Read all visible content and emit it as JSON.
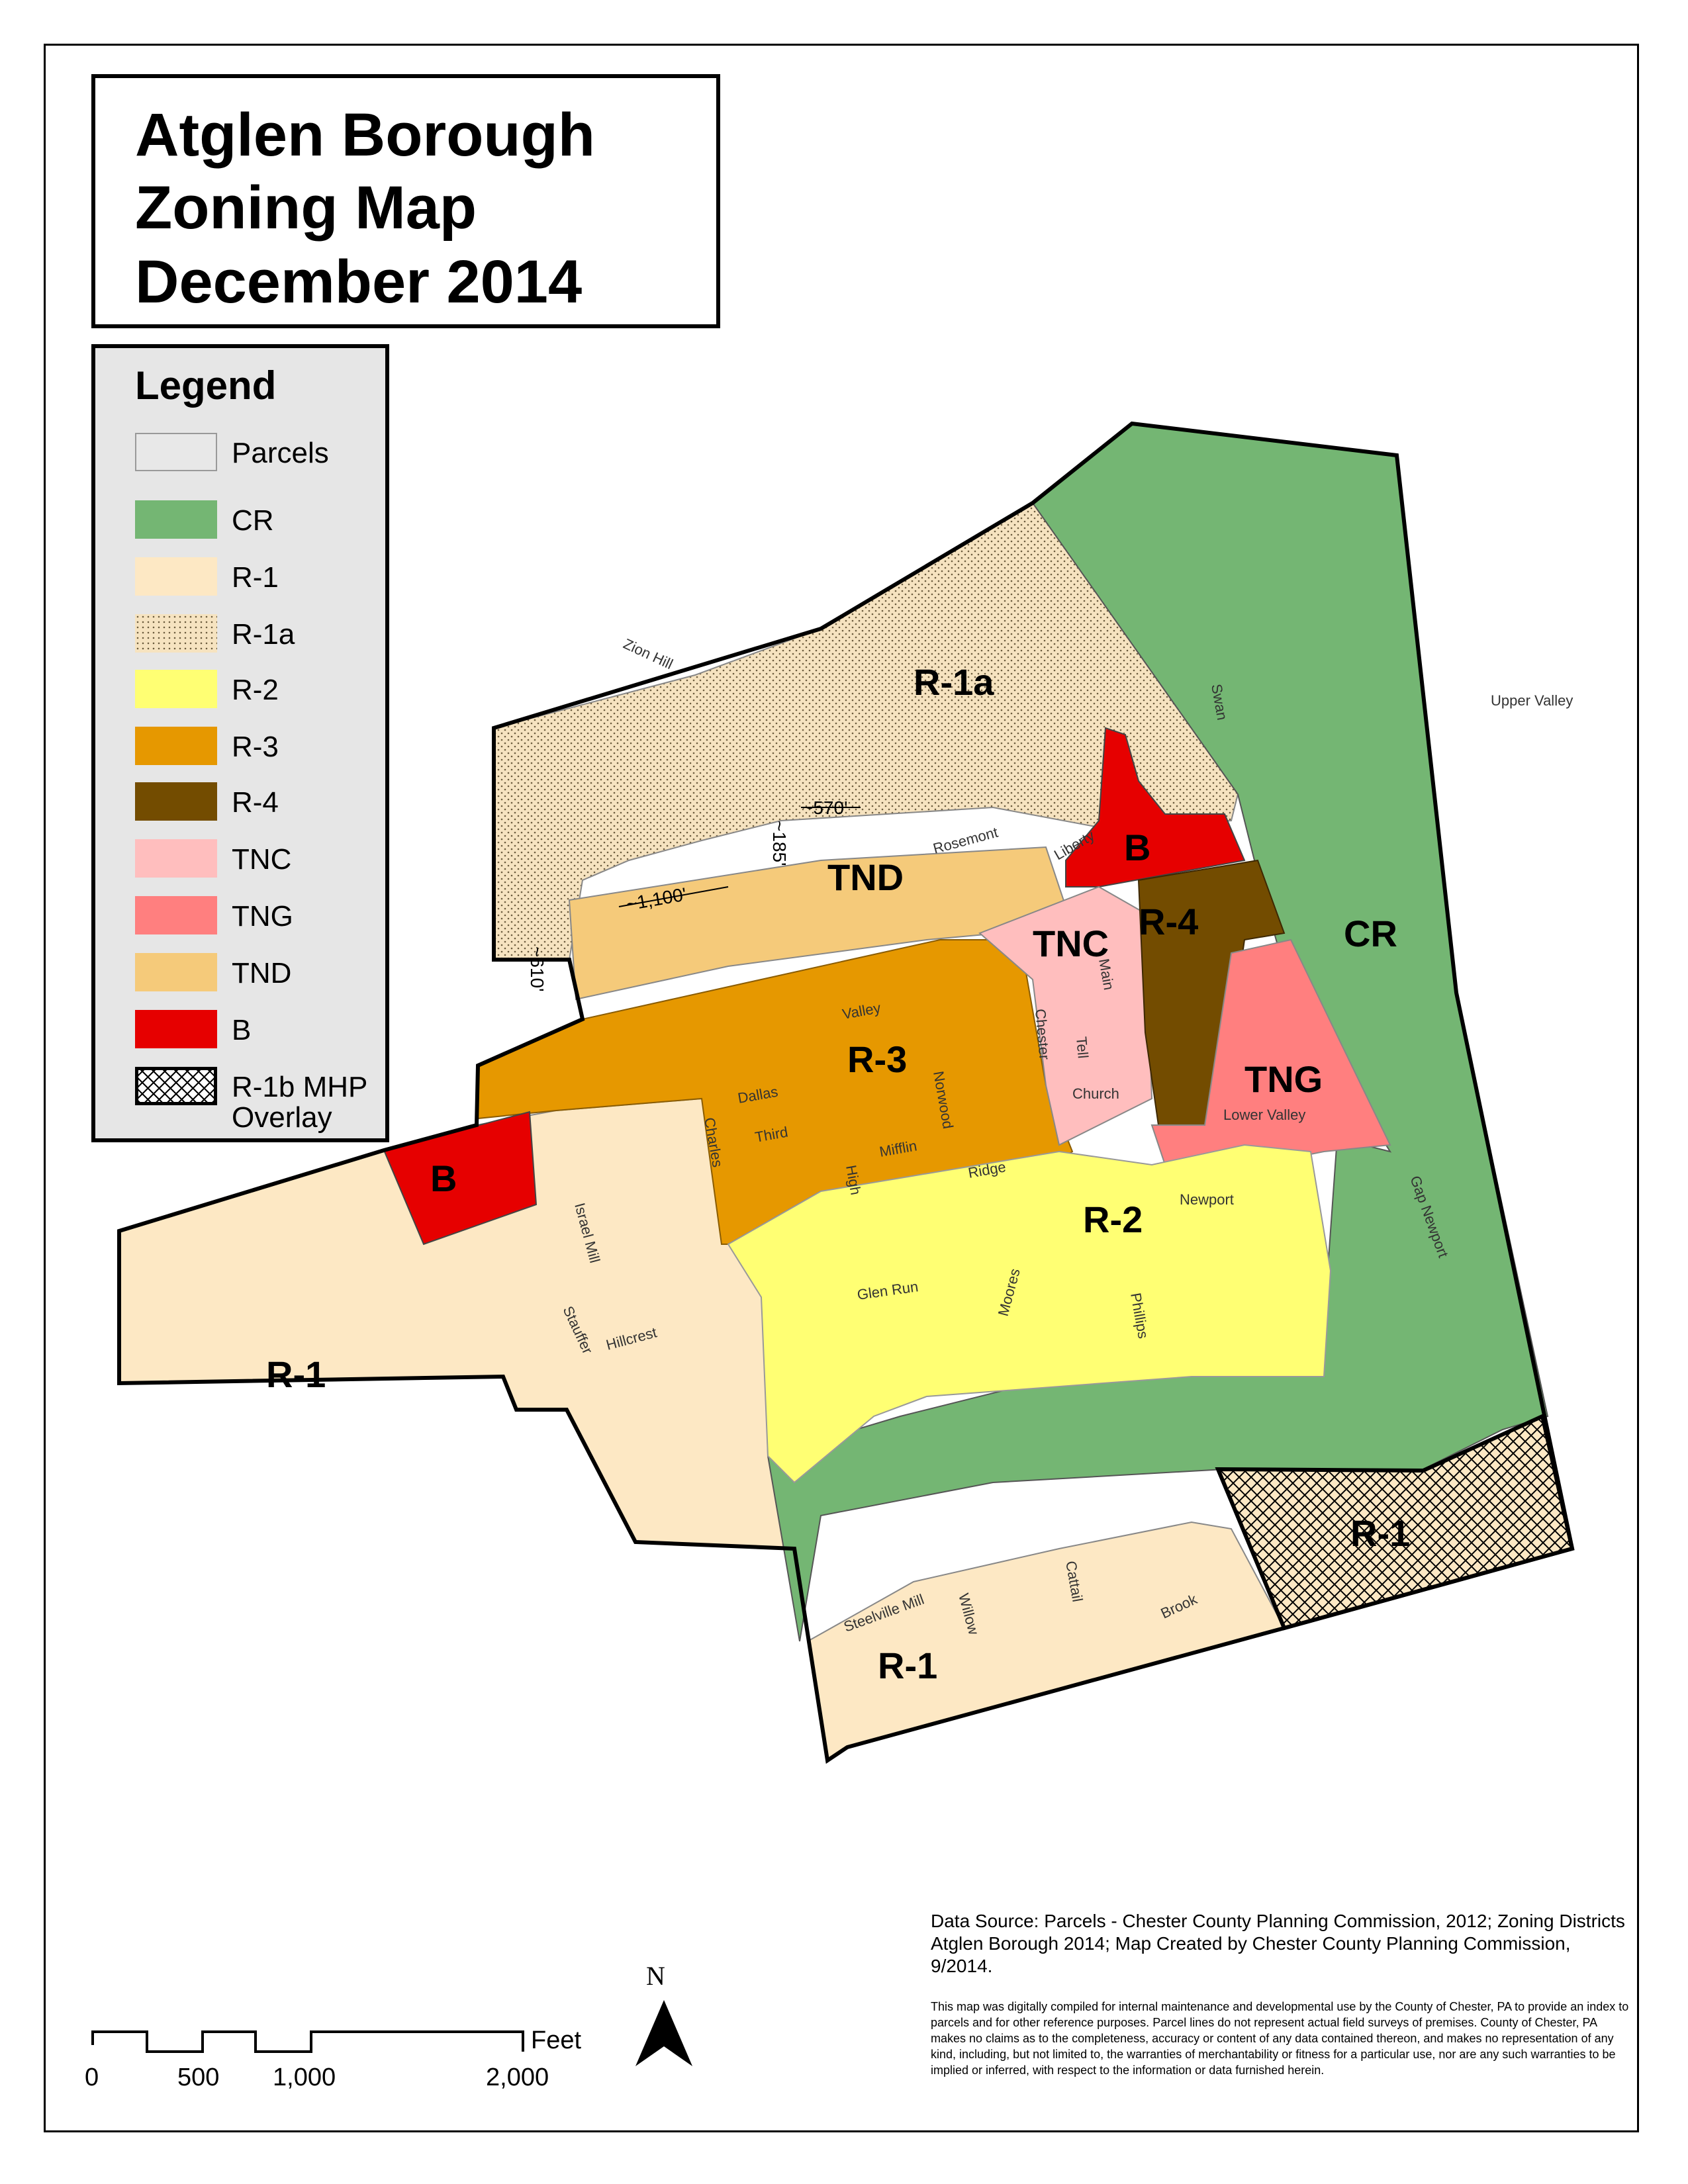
{
  "title": {
    "line1": "Atglen Borough",
    "line2": "Zoning Map",
    "line3": "December 2014"
  },
  "legend": {
    "title": "Legend",
    "items": [
      {
        "label": "Parcels",
        "color": "#e8e8e8",
        "style": "outline"
      },
      {
        "label": "CR",
        "color": "#74b673",
        "style": "fill"
      },
      {
        "label": "R-1",
        "color": "#fde8c4",
        "style": "fill"
      },
      {
        "label": "R-1a",
        "color": "#f6e3c0",
        "style": "dots"
      },
      {
        "label": "R-2",
        "color": "#ffff73",
        "style": "fill"
      },
      {
        "label": "R-3",
        "color": "#e69800",
        "style": "fill"
      },
      {
        "label": "R-4",
        "color": "#734c00",
        "style": "fill"
      },
      {
        "label": "TNC",
        "color": "#ffbebe",
        "style": "fill"
      },
      {
        "label": "TNG",
        "color": "#ff7f7f",
        "style": "fill"
      },
      {
        "label": "TND",
        "color": "#f5ca7a",
        "style": "fill"
      },
      {
        "label": "B",
        "color": "#e60000",
        "style": "fill"
      },
      {
        "label": "R-1b MHP",
        "label2": "Overlay",
        "color": "#ffffff",
        "style": "crosshatch"
      }
    ]
  },
  "zones": {
    "r1a": "R-1a",
    "tnd": "TND",
    "b_north": "B",
    "r4": "R-4",
    "tnc": "TNC",
    "cr": "CR",
    "tng": "TNG",
    "r3": "R-3",
    "b_west": "B",
    "r2": "R-2",
    "r1_west": "R-1",
    "r1_overlay": "R-1",
    "r1_south": "R-1"
  },
  "dimensions": {
    "d570": "~570'",
    "d185": "~185'",
    "d1100": "~1,100'",
    "d610": "~610'"
  },
  "streets": {
    "zion_hill": "Zion Hill",
    "upper_valley": "Upper Valley",
    "swan": "Swan",
    "rosemont": "Rosemont",
    "liberty": "Liberty",
    "main": "Main",
    "valley": "Valley",
    "chester": "Chester",
    "tell": "Tell",
    "church": "Church",
    "lower_valley": "Lower Valley",
    "dallas": "Dallas",
    "norwood": "Norwood",
    "third": "Third",
    "mifflin": "Mifflin",
    "charles": "Charles",
    "high": "High",
    "ridge": "Ridge",
    "newport": "Newport",
    "gap_newport": "Gap Newport",
    "israel_mill": "Israel Mill",
    "stauffer": "Stauffer",
    "hillcrest": "Hillcrest",
    "glen_run": "Glen Run",
    "moores": "Moores",
    "phillips": "Phillips",
    "steelville_mill": "Steelville Mill",
    "willow": "Willow",
    "cattail": "Cattail",
    "brook": "Brook"
  },
  "scale": {
    "t0": "0",
    "t500": "500",
    "t1000": "1,000",
    "t2000": "2,000",
    "unit": "Feet"
  },
  "north": "N",
  "source": "Data Source: Parcels - Chester County Planning Commission, 2012; Zoning Districts Atglen Borough 2014; Map Created by Chester County Planning Commission, 9/2014.",
  "disclaimer": "This map was digitally compiled for internal maintenance and developmental use by the County of Chester, PA to provide an index to parcels and for other reference purposes. Parcel lines do not represent actual field surveys of premises. County of Chester, PA makes no claims as to the completeness, accuracy or content of any data contained thereon, and makes no representation of any kind, including, but not limited to, the warranties of merchantability or fitness for a particular use, nor are any such warranties to be implied or inferred, with respect to the information or data furnished herein."
}
